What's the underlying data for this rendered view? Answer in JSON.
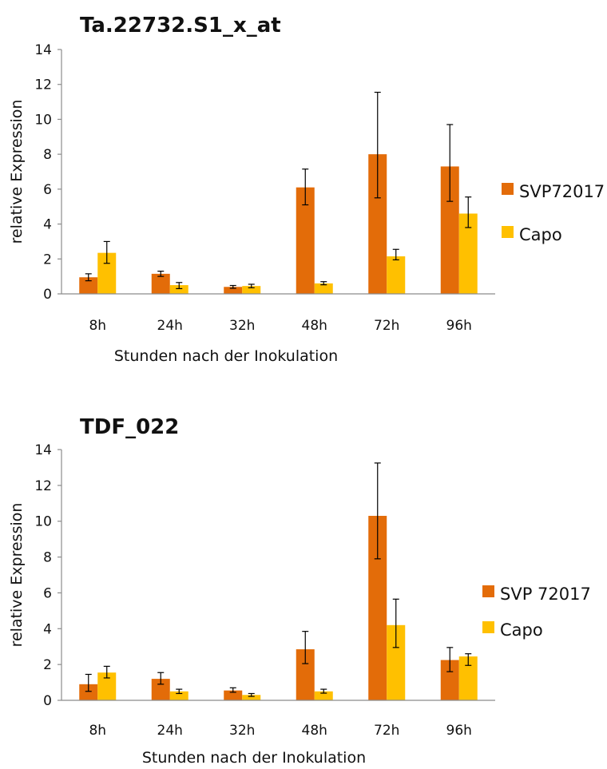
{
  "chart_data": [
    {
      "type": "bar",
      "title": "Ta.22732.S1_x_at",
      "xlabel": "Stunden nach der Inokulation",
      "ylabel": "relative  Expression",
      "ylim": [
        0,
        14
      ],
      "yticks": [
        0,
        2,
        4,
        6,
        8,
        10,
        12,
        14
      ],
      "categories": [
        "8h",
        "24h",
        "32h",
        "48h",
        "72h",
        "96h"
      ],
      "series": [
        {
          "name": "SVP72017",
          "color": "#E36C09",
          "values": [
            0.95,
            1.15,
            0.4,
            6.1,
            8.0,
            7.3
          ],
          "error_low": [
            0.75,
            1.0,
            0.32,
            5.1,
            5.5,
            5.3
          ],
          "error_high": [
            1.15,
            1.3,
            0.48,
            7.15,
            11.55,
            9.7
          ]
        },
        {
          "name": "Capo",
          "color": "#FFC000",
          "values": [
            2.35,
            0.5,
            0.45,
            0.6,
            2.15,
            4.6
          ],
          "error_low": [
            1.75,
            0.3,
            0.35,
            0.52,
            1.95,
            3.8
          ],
          "error_high": [
            3.0,
            0.65,
            0.55,
            0.7,
            2.55,
            5.55
          ]
        }
      ],
      "legend_position": "right",
      "grid": false
    },
    {
      "type": "bar",
      "title": "TDF_022",
      "xlabel": "Stunden nach  der Inokulation",
      "ylabel": "relative  Expression",
      "ylim": [
        0,
        14
      ],
      "yticks": [
        0,
        2,
        4,
        6,
        8,
        10,
        12,
        14
      ],
      "categories": [
        "8h",
        "24h",
        "32h",
        "48h",
        "72h",
        "96h"
      ],
      "series": [
        {
          "name": "SVP 72017",
          "color": "#E36C09",
          "values": [
            0.9,
            1.2,
            0.55,
            2.85,
            10.3,
            2.25
          ],
          "error_low": [
            0.5,
            0.9,
            0.45,
            2.05,
            7.9,
            1.6
          ],
          "error_high": [
            1.45,
            1.55,
            0.7,
            3.85,
            13.25,
            2.95
          ]
        },
        {
          "name": "Capo",
          "color": "#FFC000",
          "values": [
            1.55,
            0.5,
            0.3,
            0.5,
            4.2,
            2.45
          ],
          "error_low": [
            1.25,
            0.38,
            0.22,
            0.4,
            2.95,
            1.95
          ],
          "error_high": [
            1.9,
            0.62,
            0.38,
            0.62,
            5.65,
            2.6
          ]
        }
      ],
      "legend_position": "right",
      "grid": false
    }
  ]
}
